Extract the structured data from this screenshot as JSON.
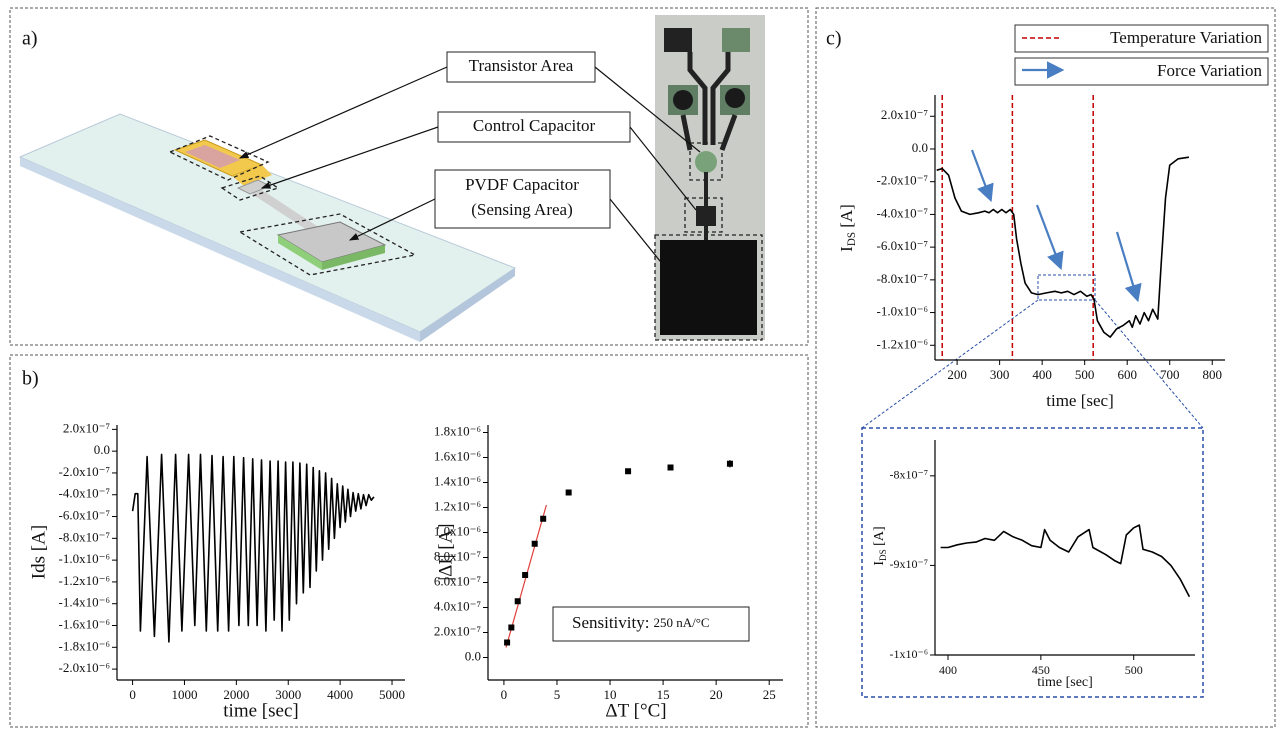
{
  "panels": [
    "a)",
    "b)",
    "c)"
  ],
  "diagram": {
    "labels": [
      [
        "Transistor Area"
      ],
      [
        "Control Capacitor"
      ],
      [
        "PVDF Capacitor",
        "(Sensing Area)"
      ]
    ]
  },
  "chart_data": [
    {
      "type": "line",
      "xlabel": "time [sec]",
      "ylabel": "Ids [A]",
      "color": "#000000",
      "x": [
        0,
        50,
        100,
        150,
        280,
        420,
        560,
        700,
        830,
        950,
        1080,
        1200,
        1310,
        1420,
        1530,
        1640,
        1745,
        1850,
        1950,
        2050,
        2140,
        2230,
        2315,
        2400,
        2485,
        2570,
        2650,
        2730,
        2805,
        2880,
        2950,
        3020,
        3090,
        3160,
        3225,
        3290,
        3355,
        3420,
        3480,
        3540,
        3600,
        3660,
        3720,
        3780,
        3835,
        3890,
        3945,
        4000,
        4050,
        4100,
        4150,
        4200,
        4250,
        4300,
        4350,
        4400,
        4450,
        4500,
        4550,
        4600,
        4650
      ],
      "values": [
        -5.5e-07,
        -3.9e-07,
        -3.9e-07,
        -1.65e-06,
        -5e-08,
        -1.7e-06,
        -3e-08,
        -1.75e-06,
        -3e-08,
        -1.65e-06,
        -3e-08,
        -1.6e-06,
        -3e-08,
        -1.65e-06,
        -4e-08,
        -1.65e-06,
        -5e-08,
        -1.65e-06,
        -5e-08,
        -1.6e-06,
        -6e-08,
        -1.6e-06,
        -7e-08,
        -1.6e-06,
        -8e-08,
        -1.65e-06,
        -9e-08,
        -1.55e-06,
        -9e-08,
        -1.65e-06,
        -1e-07,
        -1.55e-06,
        -1e-07,
        -1.4e-06,
        -1.1e-07,
        -1.3e-06,
        -1.2e-07,
        -1.25e-06,
        -1.5e-07,
        -1.1e-06,
        -1.8e-07,
        -1e-06,
        -2e-07,
        -9e-07,
        -2.5e-07,
        -8e-07,
        -3e-07,
        -7e-07,
        -3.2e-07,
        -6.5e-07,
        -3.5e-07,
        -6e-07,
        -3.8e-07,
        -5.5e-07,
        -3.9e-07,
        -5.3e-07,
        -4e-07,
        -5e-07,
        -4e-07,
        -4.5e-07,
        -4.2e-07
      ],
      "xlim": [
        -300,
        5250
      ],
      "xticks": [
        0,
        1000,
        2000,
        3000,
        4000,
        5000
      ],
      "ylim": [
        -2.1e-06,
        2.4e-07
      ],
      "yticks": [
        {
          "value": 2e-07,
          "label": "2.0x10⁻⁷"
        },
        {
          "value": 0,
          "label": "0.0"
        },
        {
          "value": -2e-07,
          "label": "-2.0x10⁻⁷"
        },
        {
          "value": -4e-07,
          "label": "-4.0x10⁻⁷"
        },
        {
          "value": -6e-07,
          "label": "-6.0x10⁻⁷"
        },
        {
          "value": -8e-07,
          "label": "-8.0x10⁻⁷"
        },
        {
          "value": -1e-06,
          "label": "-1.0x10⁻⁶"
        },
        {
          "value": -1.2e-06,
          "label": "-1.2x10⁻⁶"
        },
        {
          "value": -1.4e-06,
          "label": "-1.4x10⁻⁶"
        },
        {
          "value": -1.6e-06,
          "label": "-1.6x10⁻⁶"
        },
        {
          "value": -1.8e-06,
          "label": "-1.8x10⁻⁶"
        },
        {
          "value": -2e-06,
          "label": "-2.0x10⁻⁶"
        }
      ]
    },
    {
      "type": "scatter",
      "xlabel": "ΔT [°C]",
      "ylabel": "|ΔI| [A]",
      "color": "#000000",
      "x": [
        0.3,
        0.7,
        1.3,
        2.0,
        2.9,
        3.7,
        6.1,
        11.7,
        15.7,
        21.3
      ],
      "values": [
        1.2e-07,
        2.4e-07,
        4.5e-07,
        6.6e-07,
        9.1e-07,
        1.11e-06,
        1.32e-06,
        1.49e-06,
        1.52e-06,
        1.55e-06
      ],
      "errors": [
        0,
        0,
        0,
        0,
        0,
        0,
        1e-08,
        1e-08,
        1e-08,
        3e-08
      ],
      "fit": {
        "color": "#e0403a",
        "x": [
          0.2,
          4.0
        ],
        "values": [
          8e-08,
          1.22e-06
        ]
      },
      "annotation": {
        "label": "Sensitivity:",
        "value": "250 nA/°C"
      },
      "xlim": [
        -1.5,
        26.3
      ],
      "xticks": [
        0,
        5,
        10,
        15,
        20,
        25
      ],
      "ylim": [
        -1.8e-07,
        1.86e-06
      ],
      "yticks": [
        {
          "value": 0,
          "label": "0.0"
        },
        {
          "value": 2e-07,
          "label": "2.0x10⁻⁷"
        },
        {
          "value": 4e-07,
          "label": "4.0x10⁻⁷"
        },
        {
          "value": 6e-07,
          "label": "6.0x10⁻⁷"
        },
        {
          "value": 8e-07,
          "label": "8.0x10⁻⁷"
        },
        {
          "value": 1e-06,
          "label": "1.0x10⁻⁶"
        },
        {
          "value": 1.2e-06,
          "label": "1.2x10⁻⁶"
        },
        {
          "value": 1.4e-06,
          "label": "1.4x10⁻⁶"
        },
        {
          "value": 1.6e-06,
          "label": "1.6x10⁻⁶"
        },
        {
          "value": 1.8e-06,
          "label": "1.8x10⁻⁶"
        }
      ]
    },
    {
      "type": "line",
      "xlabel": "time [sec]",
      "ylabel": {
        "main": "I",
        "sub": "DS",
        "unit": " [A]"
      },
      "color": "#000000",
      "x": [
        152,
        165,
        180,
        195,
        210,
        230,
        250,
        265,
        275,
        285,
        295,
        305,
        315,
        325,
        333,
        340,
        350,
        360,
        375,
        390,
        410,
        430,
        445,
        460,
        475,
        490,
        505,
        515,
        522,
        530,
        545,
        560,
        575,
        590,
        605,
        612,
        620,
        630,
        640,
        650,
        660,
        672,
        680,
        690,
        700,
        720,
        745
      ],
      "values": [
        -1.3e-07,
        -1.2e-07,
        -1.6e-07,
        -3e-07,
        -3.8e-07,
        -4e-07,
        -3.9e-07,
        -3.8e-07,
        -3.9e-07,
        -3.7e-07,
        -3.9e-07,
        -3.7e-07,
        -3.9e-07,
        -3.7e-07,
        -4e-07,
        -5.5e-07,
        -7e-07,
        -8.2e-07,
        -8.8e-07,
        -8.9e-07,
        -8.8e-07,
        -8.7e-07,
        -8.8e-07,
        -8.7e-07,
        -8.9e-07,
        -8.7e-07,
        -9e-07,
        -8.9e-07,
        -9.2e-07,
        -1.05e-06,
        -1.12e-06,
        -1.15e-06,
        -1.1e-06,
        -1.08e-06,
        -1.05e-06,
        -1.09e-06,
        -1.02e-06,
        -1.07e-06,
        -1e-06,
        -1.05e-06,
        -9.8e-07,
        -1.04e-06,
        -7e-07,
        -3e-07,
        -1e-07,
        -6e-08,
        -5e-08
      ],
      "vlines": [
        165,
        330,
        520
      ],
      "vline_color": "#c00000",
      "legend": [
        "Temperature Variation",
        "Force Variation"
      ],
      "xlim": [
        148,
        830
      ],
      "xticks": [
        200,
        300,
        400,
        500,
        600,
        700,
        800
      ],
      "ylim": [
        -1.29e-06,
        3.3e-07
      ],
      "yticks": [
        {
          "value": 2e-07,
          "label": "2.0x10⁻⁷"
        },
        {
          "value": 0,
          "label": "0.0"
        },
        {
          "value": -2e-07,
          "label": "-2.0x10⁻⁷"
        },
        {
          "value": -4e-07,
          "label": "-4.0x10⁻⁷"
        },
        {
          "value": -6e-07,
          "label": "-6.0x10⁻⁷"
        },
        {
          "value": -8e-07,
          "label": "-8.0x10⁻⁷"
        },
        {
          "value": -1e-06,
          "label": "-1.0x10⁻⁶"
        },
        {
          "value": -1.2e-06,
          "label": "-1.2x10⁻⁶"
        }
      ]
    },
    {
      "type": "line",
      "xlabel": "time [sec]",
      "ylabel": {
        "main": "I",
        "sub": "DS",
        "unit": " [A]"
      },
      "color": "#000000",
      "x": [
        396,
        400,
        405,
        410,
        415,
        420,
        425,
        430,
        435,
        440,
        445,
        450,
        452,
        455,
        460,
        465,
        470,
        476,
        478,
        485,
        490,
        493,
        496,
        500,
        503,
        505,
        510,
        515,
        520,
        525,
        530
      ],
      "values": [
        -8.8e-07,
        -8.8e-07,
        -8.77e-07,
        -8.75e-07,
        -8.74e-07,
        -8.7e-07,
        -8.72e-07,
        -8.62e-07,
        -8.68e-07,
        -8.72e-07,
        -8.78e-07,
        -8.8e-07,
        -8.6e-07,
        -8.72e-07,
        -8.8e-07,
        -8.85e-07,
        -8.68e-07,
        -8.6e-07,
        -8.8e-07,
        -8.88e-07,
        -8.95e-07,
        -8.98e-07,
        -8.66e-07,
        -8.58e-07,
        -8.55e-07,
        -8.82e-07,
        -8.85e-07,
        -8.9e-07,
        -9e-07,
        -9.15e-07,
        -9.35e-07
      ],
      "xlim": [
        393,
        533
      ],
      "xticks": [
        400,
        450,
        500
      ],
      "ylim": [
        -1e-06,
        -7.6e-07
      ],
      "yticks": [
        {
          "value": -8e-07,
          "label": "-8x10⁻⁷"
        },
        {
          "value": -9e-07,
          "label": "-9x10⁻⁷"
        },
        {
          "value": -1e-06,
          "label": "-1x10⁻⁶"
        }
      ]
    }
  ]
}
